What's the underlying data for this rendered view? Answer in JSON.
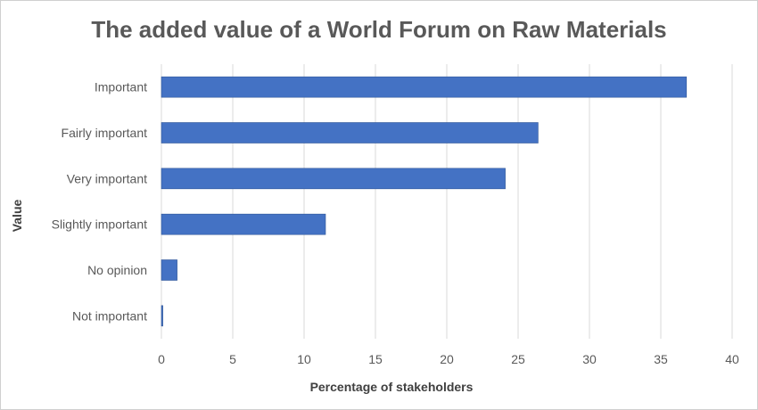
{
  "chart_data": {
    "type": "bar",
    "orientation": "horizontal",
    "title": "The added value of a World Forum on Raw Materials",
    "xlabel": "Percentage of stakeholders",
    "ylabel": "Value",
    "categories": [
      "Important",
      "Fairly important",
      "Very important",
      "Slightly important",
      "No opinion",
      "Not important"
    ],
    "values": [
      36.8,
      26.4,
      24.1,
      11.5,
      1.1,
      0.1
    ],
    "xlim": [
      0,
      40
    ],
    "xticks": [
      "0",
      "5",
      "10",
      "15",
      "20",
      "25",
      "30",
      "35",
      "40"
    ],
    "grid": true,
    "legend": "none",
    "colors": {
      "bar": "#4472c4",
      "bar_edge": "#2f5597",
      "grid": "#d9d9d9"
    }
  }
}
